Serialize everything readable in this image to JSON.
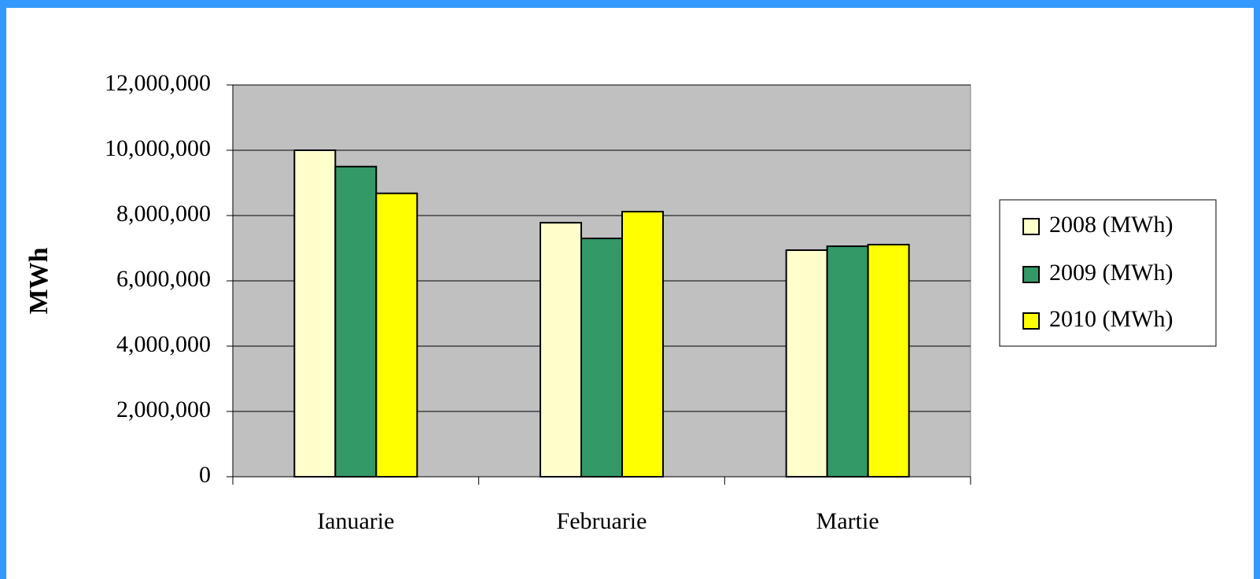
{
  "chart_data": {
    "type": "bar",
    "ylabel": "MWh",
    "categories": [
      "Ianuarie",
      "Februarie",
      "Martie"
    ],
    "series": [
      {
        "name": "2008 (MWh)",
        "color": "#ffffcc",
        "values": [
          10000000,
          7780000,
          6940000
        ]
      },
      {
        "name": "2009 (MWh)",
        "color": "#339966",
        "values": [
          9500000,
          7300000,
          7060000
        ]
      },
      {
        "name": "2010 (MWh)",
        "color": "#ffff00",
        "values": [
          8680000,
          8120000,
          7110000
        ]
      }
    ],
    "ylim": [
      0,
      12000000
    ],
    "yticks": [
      0,
      {
        "value": 2000000,
        "label": "2,000,000"
      },
      {
        "value": 4000000,
        "label": "4,000,000"
      },
      {
        "value": 6000000,
        "label": "6,000,000"
      },
      {
        "value": 8000000,
        "label": "8,000,000"
      },
      {
        "value": 10000000,
        "label": "10,000,000"
      },
      {
        "value": 12000000,
        "label": "12,000,000"
      }
    ],
    "grid": true,
    "legend": "right"
  }
}
